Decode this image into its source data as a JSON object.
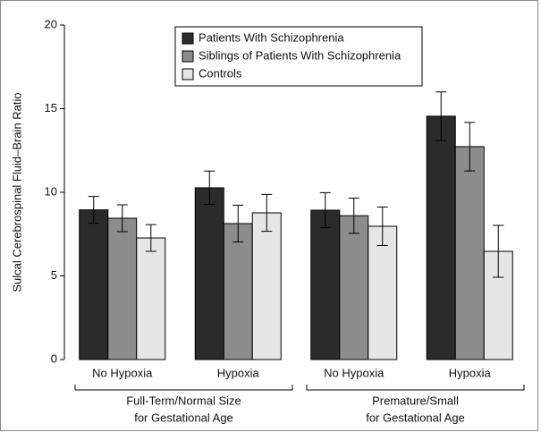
{
  "chart_data": {
    "type": "bar",
    "y_label": "Sulcal Cerebrospinal Fluid–Brain Ratio",
    "categories": [
      "No Hypoxia",
      "Hypoxia",
      "No Hypoxia",
      "Hypoxia"
    ],
    "groups": [
      [
        "Full-Term/Normal Size",
        "for Gestational Age"
      ],
      [
        "Premature/Small",
        "for Gestational Age"
      ]
    ],
    "series": [
      {
        "name": "Patients With Schizophrenia",
        "color": "#2b2b2b",
        "values": [
          8.95,
          10.27,
          8.93,
          14.55
        ],
        "errors": [
          0.8,
          1.0,
          1.05,
          1.45
        ]
      },
      {
        "name": "Siblings of Patients With Schizophrenia",
        "color": "#8c8c8c",
        "values": [
          8.45,
          8.13,
          8.6,
          12.73
        ],
        "errors": [
          0.8,
          1.1,
          1.05,
          1.45
        ]
      },
      {
        "name": "Controls",
        "color": "#e6e6e6",
        "values": [
          7.27,
          8.77,
          7.97,
          6.47
        ],
        "errors": [
          0.8,
          1.1,
          1.15,
          1.55
        ]
      }
    ],
    "ylim": [
      0,
      20
    ],
    "yticks": [
      0,
      5,
      10,
      15,
      20
    ]
  }
}
